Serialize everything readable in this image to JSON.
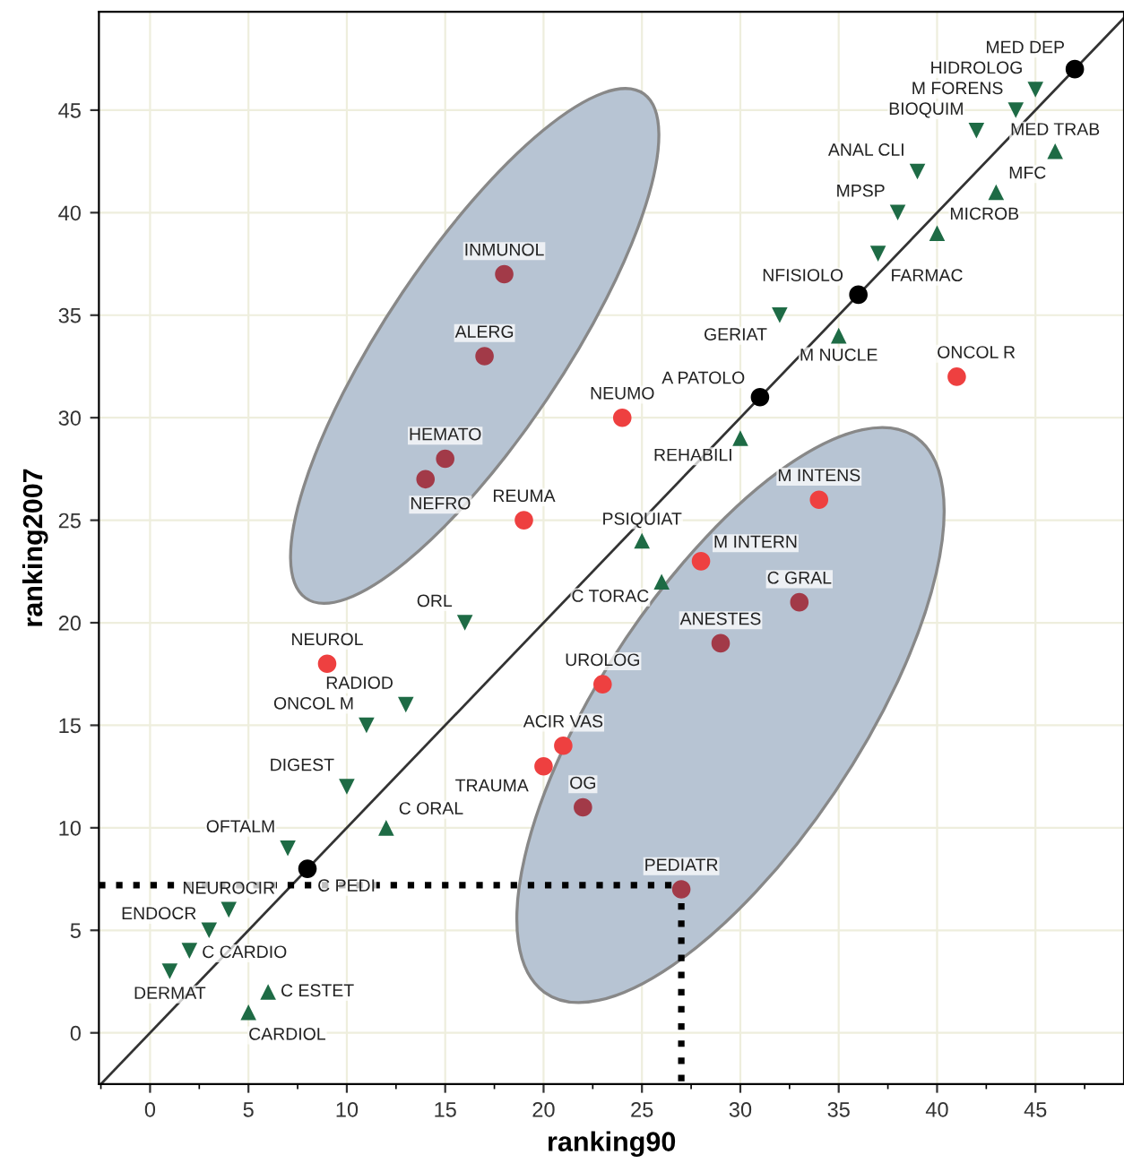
{
  "chart_data": {
    "type": "scatter",
    "xlabel": "ranking90",
    "ylabel": "ranking2007",
    "xlim": [
      -2.6,
      49.5
    ],
    "ylim": [
      -2.5,
      49.8
    ],
    "xticks": [
      {
        "value": -2.5,
        "label": null
      },
      0,
      {
        "value": 2.5,
        "label": null
      },
      5,
      {
        "value": 7.5,
        "label": null
      },
      10,
      {
        "value": 12.5,
        "label": null
      },
      15,
      {
        "value": 17.5,
        "label": null
      },
      20,
      {
        "value": 22.5,
        "label": null
      },
      25,
      {
        "value": 27.5,
        "label": null
      },
      30,
      {
        "value": 32.5,
        "label": null
      },
      35,
      {
        "value": 37.5,
        "label": null
      },
      40,
      {
        "value": 42.5,
        "label": null
      },
      45,
      {
        "value": 47.5,
        "label": null
      }
    ],
    "yticks": [
      0,
      5,
      10,
      15,
      20,
      25,
      30,
      35,
      40,
      45
    ],
    "grid": true,
    "series": [
      {
        "type": "line",
        "color": "#333333",
        "line_style": "solid",
        "marker": "none",
        "x": [
          -2.5,
          49.5
        ],
        "values": [
          -2.5,
          49.5
        ]
      },
      {
        "type": "line",
        "color": "#000000",
        "line_style": "dotted",
        "marker": "none",
        "x": [
          -2.6,
          27,
          27
        ],
        "values": [
          7.2,
          7.2,
          -2.5
        ]
      },
      {
        "color": "#000000",
        "marker": "circle",
        "x": [
          47,
          36,
          31,
          8
        ],
        "values": [
          47,
          36,
          31,
          8
        ]
      },
      {
        "color": "#1e6b45",
        "marker": "triangle_down",
        "x": [
          45,
          44,
          42,
          39,
          38,
          37,
          32,
          16,
          13,
          11,
          10,
          7,
          4,
          3,
          2,
          1
        ],
        "values": [
          46,
          45,
          44,
          42,
          40,
          38,
          35,
          20,
          16,
          15,
          12,
          9,
          6,
          5,
          4,
          3
        ]
      },
      {
        "color": "#1e6b45",
        "marker": "triangle",
        "x": [
          46,
          43,
          40,
          35,
          30,
          25,
          26,
          12,
          6,
          5
        ],
        "values": [
          43,
          41,
          39,
          34,
          29,
          24,
          22,
          10,
          2,
          1
        ]
      },
      {
        "color": "#ee4040",
        "marker": "circle",
        "x": [
          41,
          24,
          34,
          28,
          19,
          9,
          23,
          21,
          20
        ],
        "values": [
          32,
          30,
          26,
          23,
          25,
          18,
          17,
          14,
          13
        ]
      },
      {
        "color": "#a23a48",
        "marker": "circle",
        "x": [
          18,
          17,
          15,
          14,
          33,
          29,
          22,
          27
        ],
        "values": [
          37,
          33,
          28,
          27,
          21,
          19,
          11,
          7
        ]
      }
    ],
    "annotations": [
      {
        "text": "MED DEP",
        "x": 47,
        "y": 47
      },
      {
        "text": "NFISIOLO",
        "x": 36,
        "y": 36
      },
      {
        "text": "A PATOLO",
        "x": 31,
        "y": 31
      },
      {
        "text": "C PEDI",
        "x": 8,
        "y": 8
      },
      {
        "text": "HIDROLOG",
        "x": 45,
        "y": 46
      },
      {
        "text": "M FORENS",
        "x": 44,
        "y": 45
      },
      {
        "text": "BIOQUIM",
        "x": 42,
        "y": 44
      },
      {
        "text": "ANAL CLI",
        "x": 39,
        "y": 42
      },
      {
        "text": "MPSP",
        "x": 38,
        "y": 40
      },
      {
        "text": "FARMAC",
        "x": 37,
        "y": 38
      },
      {
        "text": "GERIAT",
        "x": 32,
        "y": 35
      },
      {
        "text": "ORL",
        "x": 16,
        "y": 20
      },
      {
        "text": "RADIOD",
        "x": 13,
        "y": 16
      },
      {
        "text": "ONCOL M",
        "x": 11,
        "y": 15
      },
      {
        "text": "DIGEST",
        "x": 10,
        "y": 12
      },
      {
        "text": "OFTALM",
        "x": 7,
        "y": 9
      },
      {
        "text": "NEUROCIR",
        "x": 4,
        "y": 6
      },
      {
        "text": "ENDOCR",
        "x": 3,
        "y": 5
      },
      {
        "text": "C CARDIO",
        "x": 2,
        "y": 4
      },
      {
        "text": "DERMAT",
        "x": 1,
        "y": 3
      },
      {
        "text": "MED TRAB",
        "x": 46,
        "y": 43
      },
      {
        "text": "MFC",
        "x": 43,
        "y": 41
      },
      {
        "text": "MICROB",
        "x": 40,
        "y": 39
      },
      {
        "text": "M NUCLE",
        "x": 35,
        "y": 34
      },
      {
        "text": "REHABILI",
        "x": 30,
        "y": 29
      },
      {
        "text": "PSIQUIAT",
        "x": 25,
        "y": 24
      },
      {
        "text": "C TORAC",
        "x": 26,
        "y": 22
      },
      {
        "text": "C ORAL",
        "x": 12,
        "y": 10
      },
      {
        "text": "C ESTET",
        "x": 6,
        "y": 2
      },
      {
        "text": "CARDIOL",
        "x": 5,
        "y": 1
      },
      {
        "text": "ONCOL R",
        "x": 41,
        "y": 32
      },
      {
        "text": "NEUMO",
        "x": 24,
        "y": 30
      },
      {
        "text": "M INTENS",
        "x": 34,
        "y": 26
      },
      {
        "text": "M INTERN",
        "x": 28,
        "y": 23
      },
      {
        "text": "REUMA",
        "x": 19,
        "y": 25
      },
      {
        "text": "NEUROL",
        "x": 9,
        "y": 18
      },
      {
        "text": "UROLOG",
        "x": 23,
        "y": 17
      },
      {
        "text": "ACIR VAS",
        "x": 21,
        "y": 14
      },
      {
        "text": "TRAUMA",
        "x": 20,
        "y": 13
      },
      {
        "text": "INMUNOL",
        "x": 18,
        "y": 37
      },
      {
        "text": "ALERG",
        "x": 17,
        "y": 33
      },
      {
        "text": "HEMATO",
        "x": 15,
        "y": 28
      },
      {
        "text": "NEFRO",
        "x": 14,
        "y": 27
      },
      {
        "text": "C GRAL",
        "x": 33,
        "y": 21
      },
      {
        "text": "ANESTES",
        "x": 29,
        "y": 19
      },
      {
        "text": "OG",
        "x": 22,
        "y": 11
      },
      {
        "text": "PEDIATR",
        "x": 27,
        "y": 7
      }
    ]
  }
}
